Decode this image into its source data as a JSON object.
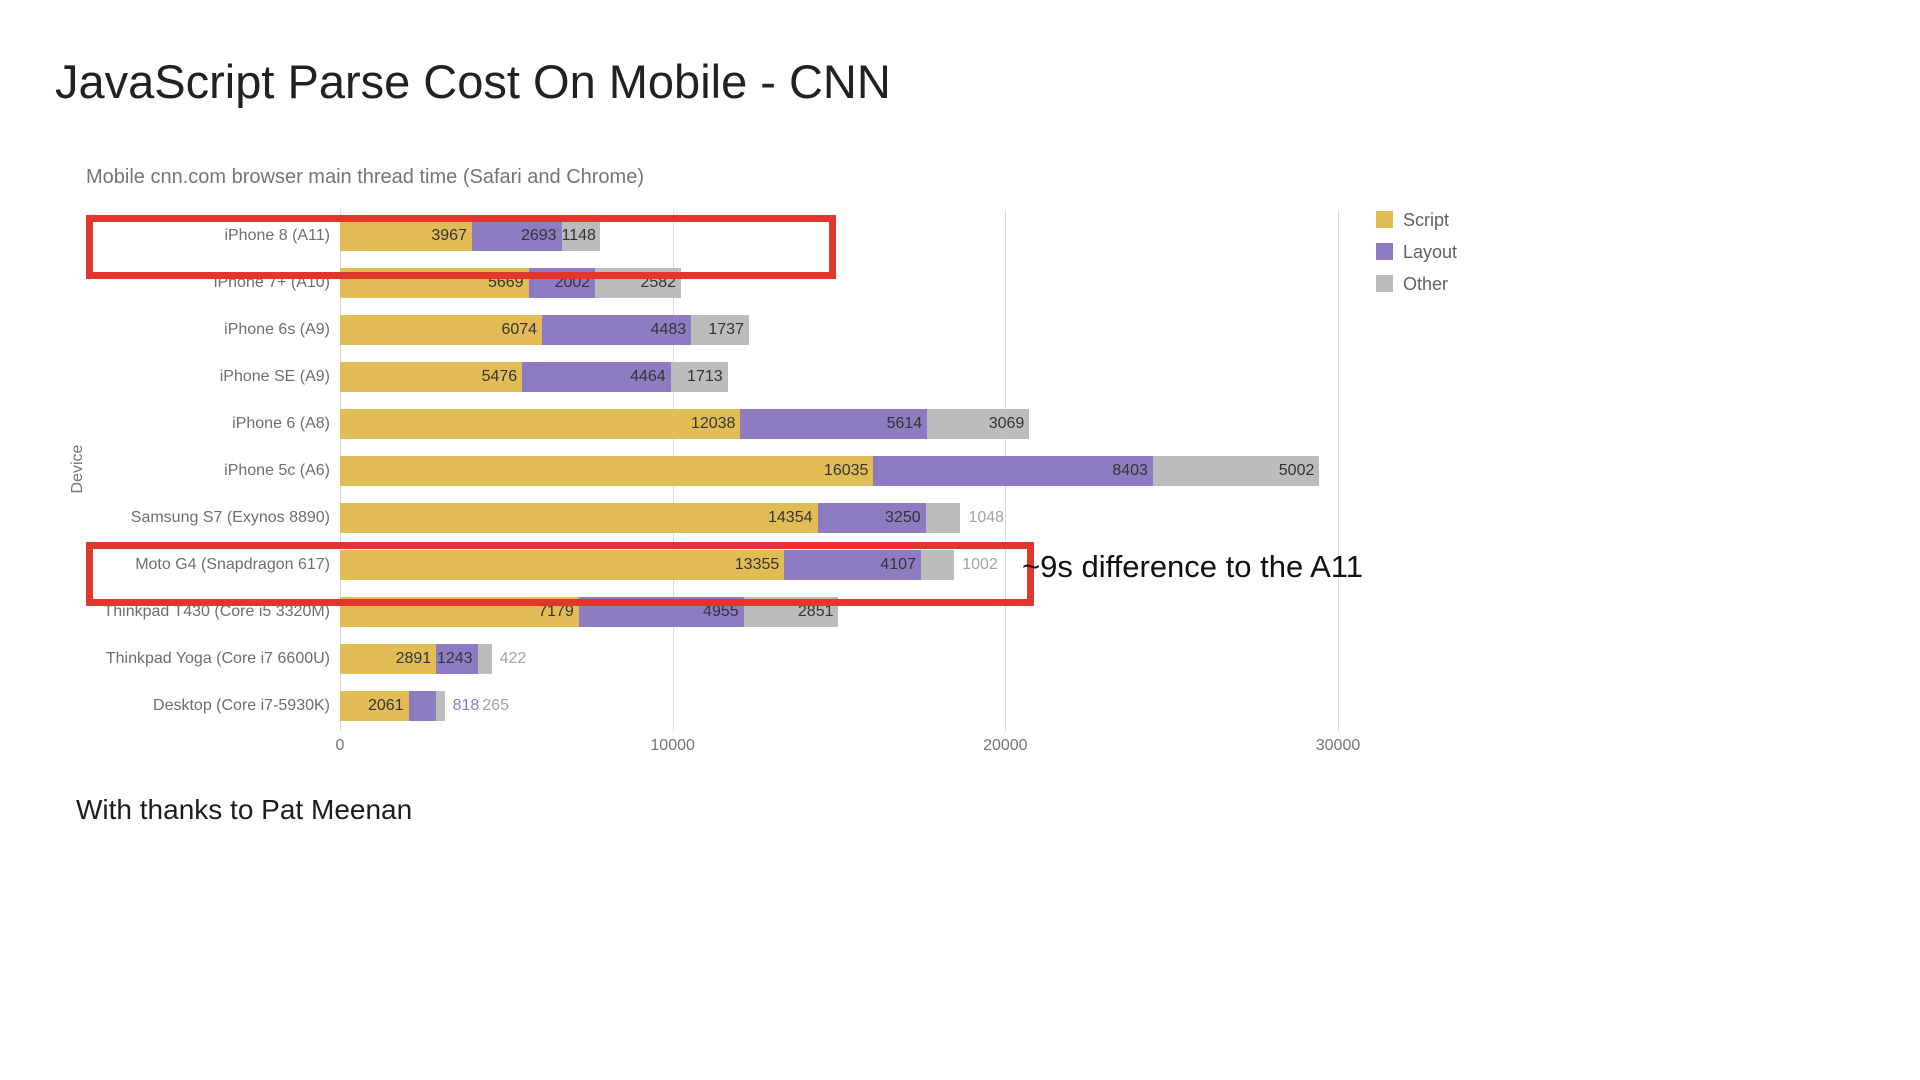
{
  "page": {
    "title": "JavaScript Parse Cost On Mobile - CNN",
    "footer": "With thanks to Pat Meenan"
  },
  "chart_data": {
    "type": "bar",
    "orientation": "horizontal",
    "stacked": true,
    "title": "Mobile cnn.com browser main thread time (Safari and Chrome)",
    "xlabel": "",
    "ylabel": "Device",
    "xlim": [
      0,
      30000
    ],
    "grid": true,
    "legend_position": "top-right",
    "x_ticks": [
      {
        "value": 0,
        "label": "0"
      },
      {
        "value": 10000,
        "label": "10000"
      },
      {
        "value": 20000,
        "label": "20000"
      },
      {
        "value": 30000,
        "label": "30000"
      }
    ],
    "categories": [
      "iPhone 8 (A11)",
      "iPhone 7+ (A10)",
      "iPhone 6s (A9)",
      "iPhone SE (A9)",
      "iPhone 6 (A8)",
      "iPhone 5c (A6)",
      "Samsung S7 (Exynos 8890)",
      "Moto G4 (Snapdragon 617)",
      "Thinkpad T430 (Core i5 3320M)",
      "Thinkpad Yoga (Core i7 6600U)",
      "Desktop (Core i7-5930K)"
    ],
    "series": [
      {
        "name": "Script",
        "color": "#e2bd56",
        "outside_label_color": "#c5a23e",
        "values": [
          3967,
          5669,
          6074,
          5476,
          12038,
          16035,
          14354,
          13355,
          7179,
          2891,
          2061
        ]
      },
      {
        "name": "Layout",
        "color": "#8d7cc2",
        "outside_label_color": "#8d7cc2",
        "values": [
          2693,
          2002,
          4483,
          4464,
          5614,
          8403,
          3250,
          4107,
          4955,
          1243,
          818
        ]
      },
      {
        "name": "Other",
        "color": "#bcbcbc",
        "outside_label_color": "#a3a3a3",
        "values": [
          1148,
          2582,
          1737,
          1713,
          3069,
          5002,
          1048,
          1002,
          2851,
          422,
          265
        ]
      }
    ],
    "highlights": [
      {
        "row": "iPhone 8 (A11)",
        "note": ""
      },
      {
        "row": "Moto G4 (Snapdragon 617)",
        "note": "~9s difference to the A11"
      }
    ],
    "highlight_color": "#e0372c"
  }
}
